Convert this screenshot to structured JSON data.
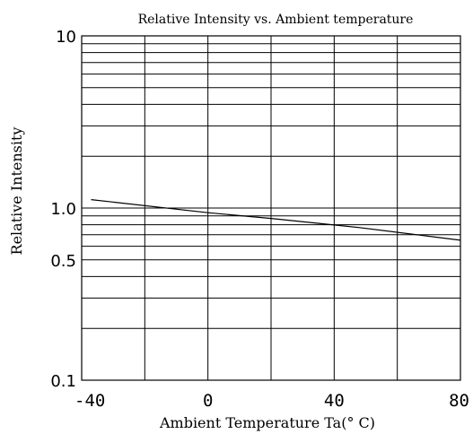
{
  "chart_data": {
    "type": "line",
    "title": "Relative Intensity vs. Ambient temperature",
    "xlabel": "Ambient Temperature Ta(° C)",
    "ylabel": "Relative Intensity",
    "x_scale": "linear",
    "y_scale": "log",
    "xlim": [
      -40,
      80
    ],
    "ylim": [
      0.1,
      10
    ],
    "x_ticks": [
      {
        "value": -40,
        "label": "-40"
      },
      {
        "value": 0,
        "label": "0"
      },
      {
        "value": 40,
        "label": "40"
      },
      {
        "value": 80,
        "label": "80"
      }
    ],
    "y_ticks": [
      {
        "value": 10,
        "label": "10"
      },
      {
        "value": 1.0,
        "label": "1.0"
      },
      {
        "value": 0.5,
        "label": "0.5"
      },
      {
        "value": 0.1,
        "label": "0.1"
      }
    ],
    "grid": true,
    "series": [
      {
        "x": [
          -37,
          0,
          20,
          48,
          80
        ],
        "y": [
          1.12,
          0.94,
          0.87,
          0.77,
          0.65
        ]
      }
    ],
    "colors": {
      "line": "#000000",
      "grid": "#000000",
      "background": "#ffffff"
    }
  }
}
